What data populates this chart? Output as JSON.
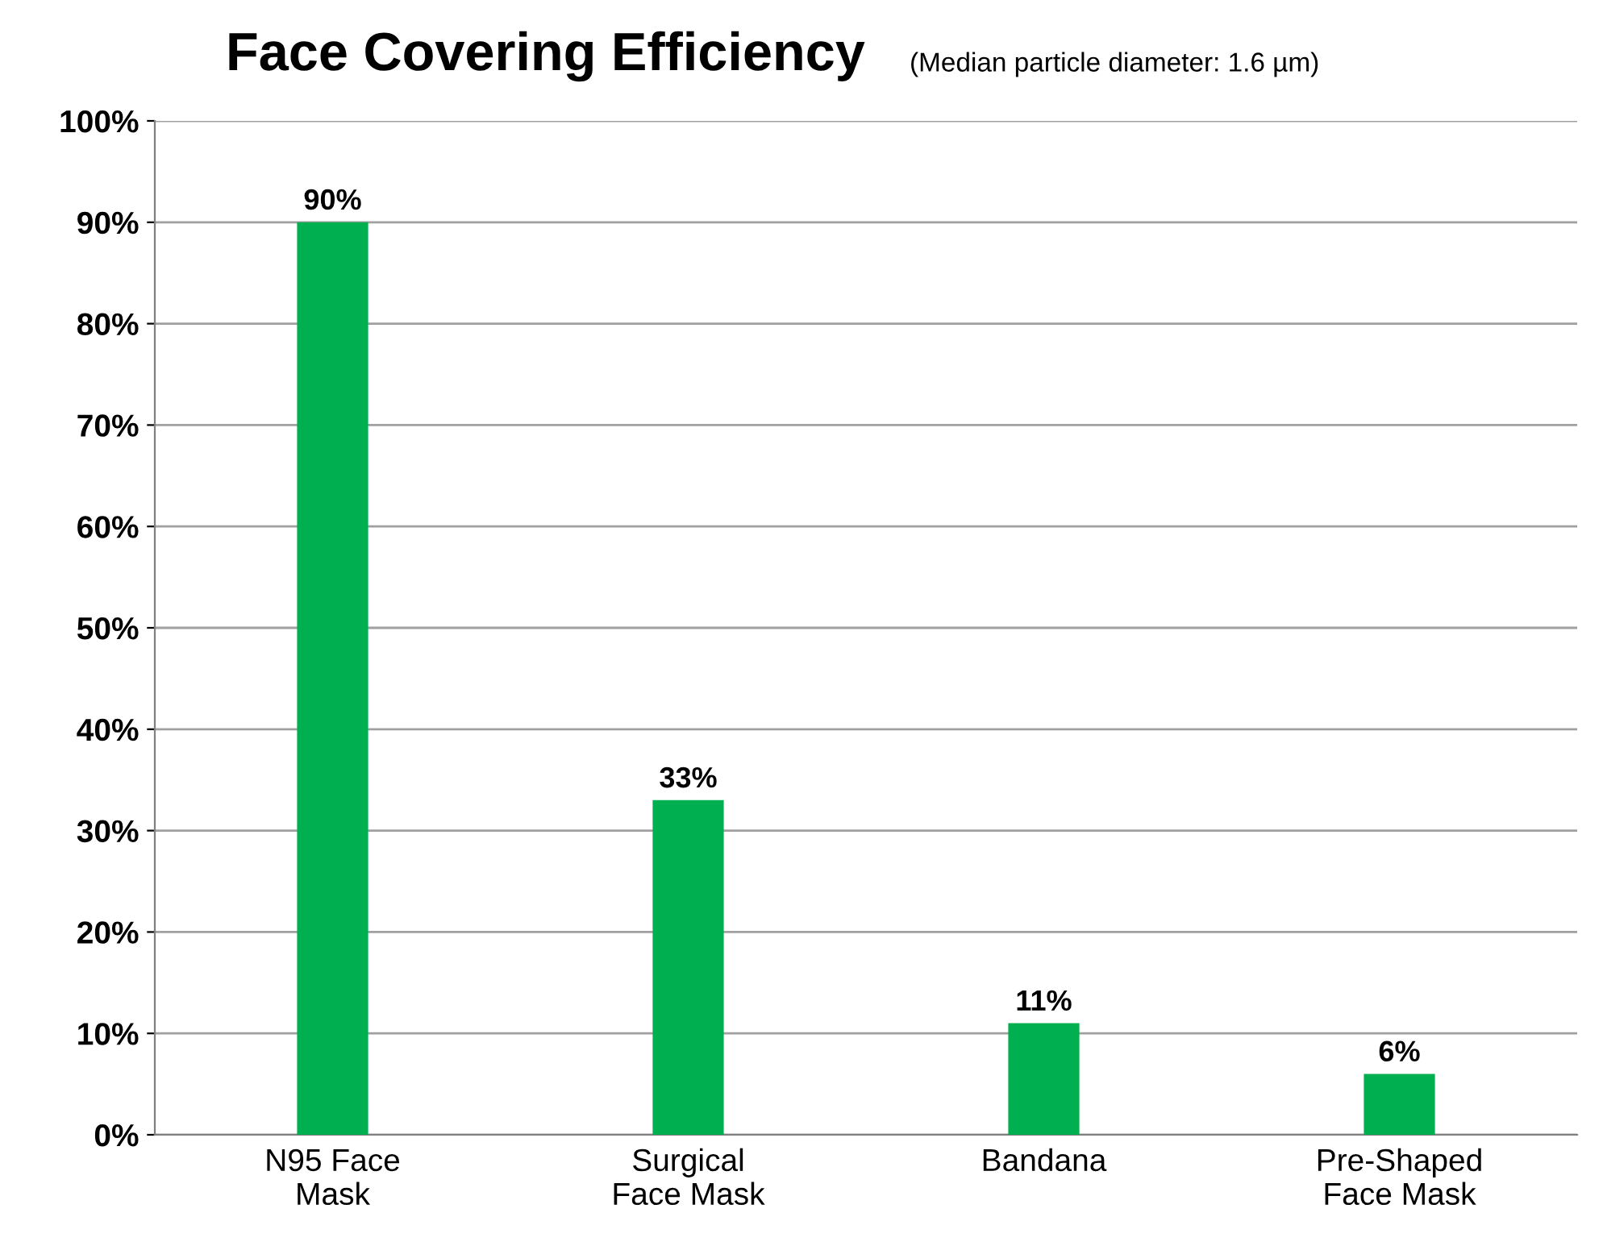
{
  "chart_data": {
    "type": "bar",
    "title": "Face Covering Efficiency",
    "subtitle": "(Median particle diameter: 1.6 µm)",
    "categories": [
      "N95 Face\nMask",
      "Surgical\nFace Mask",
      "Bandana",
      "Pre-Shaped\nFace Mask"
    ],
    "values": [
      90,
      33,
      11,
      6
    ],
    "value_labels": [
      "90%",
      "33%",
      "11%",
      "6%"
    ],
    "color": "#00b050",
    "ylim": [
      0,
      100
    ],
    "yticks": [
      {
        "value": 0,
        "label": "0%"
      },
      {
        "value": 10,
        "label": "10%"
      },
      {
        "value": 20,
        "label": "20%"
      },
      {
        "value": 30,
        "label": "30%"
      },
      {
        "value": 40,
        "label": "40%"
      },
      {
        "value": 50,
        "label": "50%"
      },
      {
        "value": 60,
        "label": "60%"
      },
      {
        "value": 70,
        "label": "70%"
      },
      {
        "value": 80,
        "label": "80%"
      },
      {
        "value": 90,
        "label": "90%"
      },
      {
        "value": 100,
        "label": "100%"
      }
    ],
    "grid": "y"
  }
}
